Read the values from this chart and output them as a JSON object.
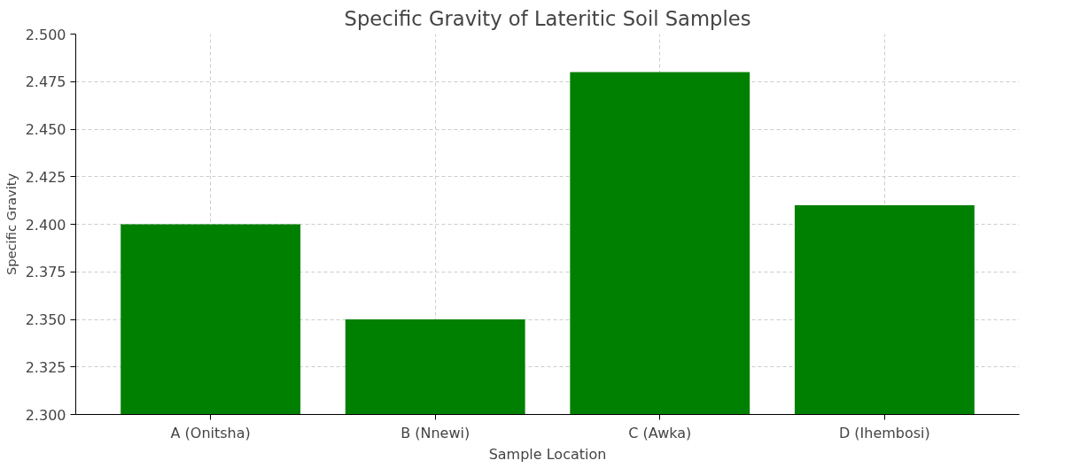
{
  "chart_data": {
    "type": "bar",
    "title": "Specific Gravity of Lateritic Soil Samples",
    "xlabel": "Sample Location",
    "ylabel": "Specific Gravity",
    "categories": [
      "A (Onitsha)",
      "B (Nnewi)",
      "C (Awka)",
      "D (Ihembosi)"
    ],
    "values": [
      2.4,
      2.35,
      2.48,
      2.41
    ],
    "color": "#008000",
    "ylim": [
      2.3,
      2.5
    ],
    "yticks": [
      {
        "value": 2.3,
        "label": "2.300"
      },
      {
        "value": 2.325,
        "label": "2.325"
      },
      {
        "value": 2.35,
        "label": "2.350"
      },
      {
        "value": 2.375,
        "label": "2.375"
      },
      {
        "value": 2.4,
        "label": "2.400"
      },
      {
        "value": 2.425,
        "label": "2.425"
      },
      {
        "value": 2.45,
        "label": "2.450"
      },
      {
        "value": 2.475,
        "label": "2.475"
      },
      {
        "value": 2.5,
        "label": "2.500"
      }
    ],
    "grid": true
  }
}
